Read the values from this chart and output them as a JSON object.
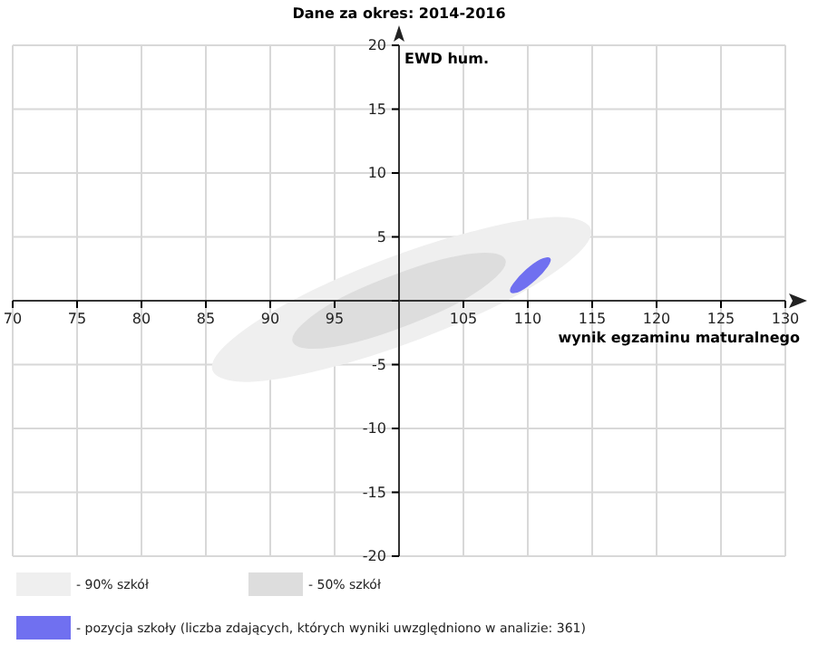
{
  "chart_data": {
    "type": "area",
    "title": "Dane za okres: 2014-2016",
    "xlabel": "wynik egzaminu maturalnego",
    "ylabel": "EWD hum.",
    "xlim": [
      70,
      130
    ],
    "ylim": [
      -20,
      20
    ],
    "xticks": [
      70,
      75,
      80,
      85,
      90,
      95,
      {
        "value": 100,
        "label": null
      },
      105,
      110,
      115,
      120,
      125,
      130
    ],
    "yticks": [
      -20,
      -15,
      -10,
      -5,
      {
        "value": 0,
        "label": null
      },
      5,
      10,
      15,
      20
    ],
    "grid": true,
    "legend": "bottom",
    "series": [
      {
        "name": "- 90% szkół",
        "color": "#efefef",
        "x": [
          114.8,
          112.1,
          106.2,
          98.7,
          91.6,
          86.8,
          85.6,
          88.3,
          94.2,
          101.7,
          108.8,
          113.6
        ],
        "values": [
          5.7,
          6.5,
          5.5,
          3.1,
          -0.1,
          -3.3,
          -5.5,
          -6.3,
          -5.3,
          -2.9,
          0.3,
          3.5
        ]
      },
      {
        "name": "- 50% szkół",
        "color": "#dddddd",
        "x": [
          108.2,
          106.7,
          103.4,
          99.2,
          95.2,
          92.5,
          91.8,
          93.3,
          96.6,
          100.8,
          104.8,
          107.5
        ],
        "values": [
          3.2,
          3.7,
          3.2,
          1.8,
          0,
          -1.9,
          -3.2,
          -3.7,
          -3.2,
          -1.8,
          0,
          1.9
        ]
      },
      {
        "name": "- pozycja szkoły (liczba zdających, których wyniki uwzględniono w analizie: 361)",
        "color": "#7070f0",
        "x": [
          111.7,
          111.0,
          109.9,
          108.9,
          108.7,
          109.4,
          110.6,
          111.5
        ],
        "values": [
          3.3,
          3.2,
          2.4,
          1.3,
          0.7,
          0.8,
          1.7,
          2.7
        ]
      }
    ]
  }
}
